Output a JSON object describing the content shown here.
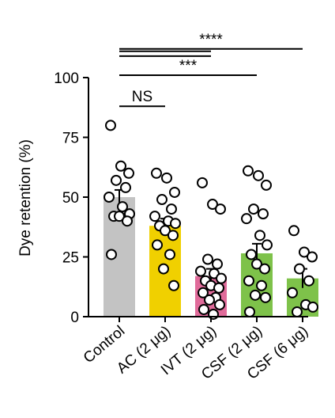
{
  "chart_data": {
    "type": "bar",
    "ylabel": "Dye retention (%)",
    "ylim": [
      0,
      100
    ],
    "yticks": [
      0,
      25,
      50,
      75,
      100
    ],
    "grid": false,
    "categories": [
      "Control",
      "AC (2 μg)",
      "IVT (2 μg)",
      "CSF (2 μg)",
      "CSF (6 μg)"
    ],
    "colors": [
      "#c3c3c3",
      "#f0d000",
      "#e06b9a",
      "#7ec24a",
      "#7ec24a"
    ],
    "values": [
      50,
      38,
      17,
      26.5,
      16
    ],
    "error": [
      3,
      3,
      3,
      4,
      4
    ],
    "points": [
      [
        80,
        63,
        60,
        57,
        54,
        50,
        46,
        43,
        42,
        42,
        40,
        26
      ],
      [
        60,
        58,
        52,
        49,
        45,
        42,
        40,
        39,
        38,
        36,
        34,
        30,
        26,
        20,
        13
      ],
      [
        56,
        47,
        45,
        24,
        22,
        19,
        18,
        16,
        15,
        13,
        12,
        10,
        8,
        7,
        5,
        3,
        1
      ],
      [
        61,
        59,
        55,
        45,
        43,
        41,
        34,
        30,
        26,
        22,
        20,
        15,
        13,
        9,
        8,
        2
      ],
      [
        36,
        27,
        25,
        20,
        15,
        10,
        5,
        4,
        2
      ]
    ],
    "significance": [
      {
        "from": 0,
        "to": 1,
        "label": "NS",
        "y": 88
      },
      {
        "from": 0,
        "to": 3,
        "label": "***",
        "y": 101
      },
      {
        "from": 0,
        "to": 2,
        "label": "",
        "y": 109
      },
      {
        "from": 0,
        "to": 2,
        "label": "",
        "y": 111
      },
      {
        "from": 0,
        "to": 4,
        "label": "****",
        "y": 112
      }
    ]
  }
}
